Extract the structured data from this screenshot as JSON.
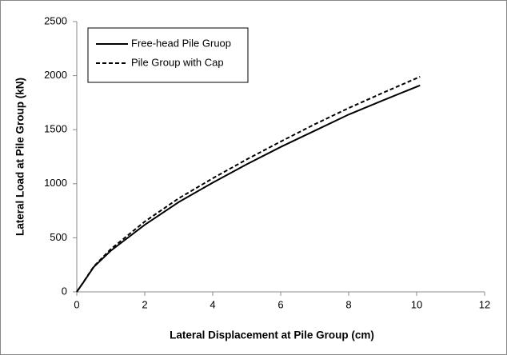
{
  "chart_data": {
    "type": "line",
    "xlabel": "Lateral Displacement at Pile Group (cm)",
    "ylabel": "Lateral Load at Pile Group (kN)",
    "xlim": [
      0,
      12
    ],
    "xticks": [
      0,
      2,
      4,
      6,
      8,
      10,
      12
    ],
    "ylim": [
      0,
      2500
    ],
    "yticks": [
      0,
      500,
      1000,
      1500,
      2000,
      2500
    ],
    "legend": "top-left",
    "series": [
      {
        "name": "Free-head Pile Gruop",
        "color": "#000000",
        "style": "solid",
        "x": [
          0,
          0.2,
          0.5,
          1,
          2,
          3,
          4,
          5,
          6,
          7,
          8,
          9,
          10.1
        ],
        "values": [
          0,
          90,
          230,
          380,
          620,
          830,
          1010,
          1180,
          1340,
          1490,
          1640,
          1770,
          1910
        ]
      },
      {
        "name": "Pile Group with Cap",
        "color": "#000000",
        "style": "dashed",
        "x": [
          0,
          0.2,
          0.5,
          1,
          2,
          3,
          4,
          5,
          6,
          7,
          8,
          9,
          10.1
        ],
        "values": [
          0,
          92,
          235,
          395,
          650,
          865,
          1050,
          1225,
          1390,
          1550,
          1700,
          1840,
          1990
        ]
      }
    ]
  }
}
